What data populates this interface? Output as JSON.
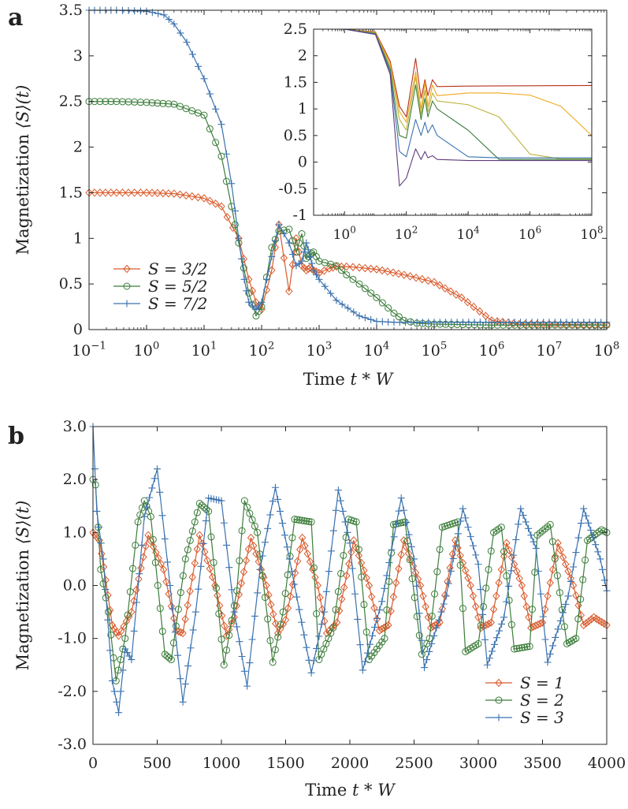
{
  "panels": {
    "a": {
      "letter": "a"
    },
    "b": {
      "letter": "b"
    }
  },
  "chart_data": [
    {
      "id": "a-main",
      "type": "line",
      "panel_label": "a",
      "xlabel": "Time t * W",
      "ylabel": "Magnetization ⟨S_z⟩(t)",
      "xscale": "log",
      "xlim": [
        0.1,
        100000000
      ],
      "ylim": [
        0,
        3.5
      ],
      "x_ticks": [
        {
          "v": 0.1,
          "b": "10",
          "e": "−1"
        },
        {
          "v": 1,
          "b": "10",
          "e": "0"
        },
        {
          "v": 10,
          "b": "10",
          "e": "1"
        },
        {
          "v": 100,
          "b": "10",
          "e": "2"
        },
        {
          "v": 1000,
          "b": "10",
          "e": "3"
        },
        {
          "v": 10000,
          "b": "10",
          "e": "4"
        },
        {
          "v": 100000,
          "b": "10",
          "e": "5"
        },
        {
          "v": 1000000,
          "b": "10",
          "e": "6"
        },
        {
          "v": 10000000,
          "b": "10",
          "e": "7"
        },
        {
          "v": 100000000,
          "b": "10",
          "e": "8"
        }
      ],
      "y_ticks": [
        {
          "v": 0,
          "t": "0"
        },
        {
          "v": 0.5,
          "t": "0.5"
        },
        {
          "v": 1,
          "t": "1"
        },
        {
          "v": 1.5,
          "t": "1.5"
        },
        {
          "v": 2,
          "t": "2"
        },
        {
          "v": 2.5,
          "t": "2.5"
        },
        {
          "v": 3,
          "t": "3"
        },
        {
          "v": 3.5,
          "t": "3.5"
        }
      ],
      "legend_position": "bottom-left",
      "series": [
        {
          "name": "S = 3/2",
          "color": "#d95a2b",
          "marker": "diamond",
          "x": [
            0.1,
            0.3,
            1,
            3,
            10,
            20,
            40,
            60,
            80,
            100,
            150,
            200,
            300,
            400,
            500,
            600,
            700,
            800,
            1000,
            1500,
            2000,
            3000,
            5000,
            10000,
            30000,
            100000,
            300000,
            1000000,
            3000000,
            10000000,
            100000000
          ],
          "y": [
            1.5,
            1.5,
            1.5,
            1.49,
            1.44,
            1.35,
            1.0,
            0.55,
            0.3,
            0.22,
            0.65,
            1.15,
            0.42,
            1.0,
            0.7,
            0.65,
            0.68,
            0.65,
            0.62,
            0.67,
            0.69,
            0.69,
            0.68,
            0.66,
            0.6,
            0.52,
            0.35,
            0.1,
            0.06,
            0.06,
            0.05
          ]
        },
        {
          "name": "S = 5/2",
          "color": "#3c7d3a",
          "marker": "circle",
          "x": [
            0.1,
            0.3,
            1,
            3,
            10,
            20,
            30,
            40,
            60,
            80,
            100,
            150,
            200,
            300,
            400,
            500,
            600,
            700,
            800,
            1000,
            2000,
            3000,
            5000,
            10000,
            20000,
            30000,
            50000,
            100000,
            1000000,
            10000000,
            100000000
          ],
          "y": [
            2.5,
            2.5,
            2.49,
            2.47,
            2.35,
            1.9,
            1.35,
            0.95,
            0.4,
            0.15,
            0.25,
            0.9,
            1.08,
            1.1,
            0.85,
            1.05,
            0.78,
            0.82,
            0.85,
            0.75,
            0.7,
            0.6,
            0.5,
            0.35,
            0.18,
            0.1,
            0.07,
            0.06,
            0.05,
            0.05,
            0.05
          ]
        },
        {
          "name": "S = 7/2",
          "color": "#3a72b0",
          "marker": "plus",
          "x": [
            0.1,
            0.3,
            1,
            2,
            3,
            5,
            10,
            20,
            30,
            40,
            50,
            60,
            80,
            100,
            150,
            200,
            300,
            400,
            500,
            600,
            700,
            800,
            1000,
            2000,
            5000,
            10000,
            20000,
            100000,
            100000000
          ],
          "y": [
            3.5,
            3.5,
            3.49,
            3.45,
            3.35,
            3.15,
            2.75,
            2.25,
            1.6,
            1.0,
            0.55,
            0.3,
            0.22,
            0.3,
            0.8,
            1.15,
            0.95,
            0.7,
            0.75,
            0.95,
            0.8,
            0.65,
            0.55,
            0.32,
            0.15,
            0.09,
            0.08,
            0.08,
            0.08
          ]
        }
      ]
    },
    {
      "id": "a-inset",
      "type": "line",
      "xscale": "log",
      "xlim": [
        0.1,
        100000000
      ],
      "ylim": [
        -1,
        2.5
      ],
      "x_ticks": [
        {
          "v": 1,
          "b": "10",
          "e": "0"
        },
        {
          "v": 100,
          "b": "10",
          "e": "2"
        },
        {
          "v": 10000,
          "b": "10",
          "e": "4"
        },
        {
          "v": 1000000,
          "b": "10",
          "e": "6"
        },
        {
          "v": 100000000,
          "b": "10",
          "e": "8"
        }
      ],
      "y_ticks": [
        {
          "v": -1,
          "t": "-1"
        },
        {
          "v": -0.5,
          "t": "-0.5"
        },
        {
          "v": 0,
          "t": "0"
        },
        {
          "v": 0.5,
          "t": "0.5"
        },
        {
          "v": 1,
          "t": "1"
        },
        {
          "v": 1.5,
          "t": "1.5"
        },
        {
          "v": 2,
          "t": "2"
        },
        {
          "v": 2.5,
          "t": "2.5"
        }
      ],
      "series": [
        {
          "color": "#b8321e",
          "x": [
            0.1,
            1,
            10,
            30,
            60,
            100,
            200,
            300,
            400,
            500,
            700,
            1000,
            10000,
            100000000
          ],
          "y": [
            2.5,
            2.5,
            2.45,
            1.9,
            1.05,
            0.85,
            1.95,
            1.2,
            1.55,
            1.25,
            1.55,
            1.42,
            1.43,
            1.44
          ]
        },
        {
          "color": "#f0a81c",
          "x": [
            0.1,
            1,
            10,
            30,
            60,
            100,
            200,
            300,
            400,
            500,
            700,
            1000,
            10000,
            100000,
            1000000,
            10000000,
            100000000
          ],
          "y": [
            2.5,
            2.5,
            2.44,
            1.85,
            0.95,
            0.75,
            1.7,
            1.0,
            1.5,
            1.05,
            1.45,
            1.25,
            1.3,
            1.3,
            1.26,
            1.05,
            0.5
          ]
        },
        {
          "color": "#bcb23c",
          "x": [
            0.1,
            1,
            10,
            30,
            60,
            100,
            200,
            300,
            400,
            500,
            700,
            1000,
            10000,
            100000,
            1000000,
            10000000,
            100000000
          ],
          "y": [
            2.5,
            2.5,
            2.43,
            1.8,
            0.8,
            0.6,
            1.6,
            0.9,
            1.35,
            0.95,
            1.3,
            1.15,
            1.08,
            0.85,
            0.15,
            0.06,
            0.06
          ]
        },
        {
          "color": "#3c7d3a",
          "x": [
            0.1,
            1,
            10,
            30,
            60,
            100,
            200,
            300,
            400,
            500,
            700,
            1000,
            10000,
            100000,
            1000000,
            100000000
          ],
          "y": [
            2.5,
            2.5,
            2.42,
            1.75,
            0.5,
            0.45,
            1.45,
            0.8,
            1.2,
            0.85,
            1.15,
            1.0,
            0.6,
            0.05,
            0.05,
            0.05
          ]
        },
        {
          "color": "#3a72b0",
          "x": [
            0.1,
            1,
            10,
            30,
            60,
            100,
            200,
            300,
            400,
            500,
            700,
            1000,
            10000,
            100000,
            100000000
          ],
          "y": [
            2.5,
            2.5,
            2.41,
            1.7,
            0.2,
            0.1,
            0.8,
            0.5,
            0.75,
            0.55,
            0.7,
            0.5,
            0.1,
            0.08,
            0.08
          ]
        },
        {
          "color": "#5f3c7c",
          "x": [
            0.1,
            1,
            10,
            30,
            60,
            100,
            200,
            300,
            400,
            500,
            700,
            1000,
            10000,
            100000000
          ],
          "y": [
            2.5,
            2.5,
            2.4,
            1.65,
            -0.45,
            -0.3,
            0.25,
            0.05,
            0.2,
            0.08,
            0.12,
            0.05,
            0.03,
            0.03
          ]
        }
      ]
    },
    {
      "id": "b-main",
      "type": "line",
      "panel_label": "b",
      "xlabel": "Time t * W",
      "ylabel": "Magnetization ⟨S_z⟩(t)",
      "xlim": [
        0,
        4000
      ],
      "ylim": [
        -3,
        3
      ],
      "x_ticks": [
        {
          "v": 0,
          "t": "0"
        },
        {
          "v": 500,
          "t": "500"
        },
        {
          "v": 1000,
          "t": "1000"
        },
        {
          "v": 1500,
          "t": "1500"
        },
        {
          "v": 2000,
          "t": "2000"
        },
        {
          "v": 2500,
          "t": "2500"
        },
        {
          "v": 3000,
          "t": "3000"
        },
        {
          "v": 3500,
          "t": "3500"
        },
        {
          "v": 4000,
          "t": "4000"
        }
      ],
      "y_ticks": [
        {
          "v": -3,
          "t": "-3.0"
        },
        {
          "v": -2,
          "t": "-2.0"
        },
        {
          "v": -1,
          "t": "-1.0"
        },
        {
          "v": 0,
          "t": "0.0"
        },
        {
          "v": 1,
          "t": "1.0"
        },
        {
          "v": 2,
          "t": "2.0"
        },
        {
          "v": 3,
          "t": "3.0"
        }
      ],
      "legend_position": "bottom-right",
      "series": [
        {
          "name": "S = 1",
          "color": "#d95a2b",
          "marker": "diamond",
          "x": [
            0,
            50,
            100,
            150,
            200,
            300,
            430,
            550,
            650,
            700,
            830,
            950,
            1040,
            1100,
            1230,
            1350,
            1440,
            1500,
            1630,
            1750,
            1820,
            1900,
            2030,
            2150,
            2230,
            2300,
            2420,
            2550,
            2630,
            2700,
            2820,
            2940,
            3020,
            3100,
            3220,
            3340,
            3410,
            3500,
            3620,
            3740,
            3820,
            3900,
            4000
          ],
          "y": [
            1.0,
            0.85,
            0.1,
            -0.75,
            -0.95,
            -0.5,
            0.95,
            0.3,
            -0.85,
            -0.9,
            0.95,
            0.0,
            -0.95,
            -0.6,
            0.9,
            0.0,
            -0.9,
            -0.65,
            0.9,
            0.0,
            -0.9,
            -0.7,
            0.85,
            0.0,
            -0.85,
            -0.75,
            0.85,
            0.0,
            -0.8,
            -0.7,
            0.85,
            0.0,
            -0.8,
            -0.7,
            0.8,
            0.0,
            -0.8,
            -0.7,
            0.8,
            0.0,
            -0.75,
            -0.6,
            -0.75
          ]
        },
        {
          "name": "S = 2",
          "color": "#3c7d3a",
          "marker": "circle",
          "x": [
            0,
            20,
            60,
            120,
            180,
            250,
            350,
            400,
            450,
            560,
            610,
            720,
            830,
            900,
            1020,
            1120,
            1180,
            1280,
            1400,
            1480,
            1570,
            1700,
            1760,
            1870,
            1990,
            2050,
            2150,
            2270,
            2340,
            2430,
            2560,
            2620,
            2720,
            2840,
            2900,
            3000,
            3120,
            3180,
            3280,
            3400,
            3460,
            3560,
            3690,
            3760,
            3850,
            3960,
            4000
          ],
          "y": [
            2.0,
            1.9,
            0.3,
            -0.5,
            -1.8,
            -1.0,
            1.2,
            1.6,
            1.3,
            -1.3,
            -1.4,
            0.5,
            1.55,
            1.4,
            -1.5,
            -0.1,
            1.6,
            1.0,
            -1.45,
            -0.5,
            1.25,
            1.2,
            -1.4,
            -0.8,
            1.25,
            1.2,
            -1.4,
            -1.0,
            1.15,
            1.2,
            -1.3,
            -1.0,
            1.1,
            1.2,
            -1.25,
            -1.1,
            1.0,
            1.1,
            -1.2,
            -1.15,
            0.95,
            1.15,
            -1.1,
            -1.0,
            0.85,
            1.05,
            1.0
          ]
        },
        {
          "name": "S = 3",
          "color": "#3a72b0",
          "marker": "plus",
          "x": [
            0,
            30,
            80,
            150,
            200,
            250,
            300,
            400,
            500,
            600,
            700,
            800,
            900,
            1000,
            1100,
            1200,
            1300,
            1420,
            1530,
            1700,
            1800,
            1910,
            2000,
            2100,
            2250,
            2400,
            2500,
            2580,
            2750,
            2880,
            3000,
            3070,
            3200,
            3330,
            3450,
            3540,
            3700,
            3820,
            3950,
            4000
          ],
          "y": [
            3.0,
            1.4,
            0.5,
            -1.8,
            -2.4,
            -1.2,
            -1.4,
            1.3,
            2.2,
            0.0,
            -2.2,
            -0.5,
            1.65,
            1.6,
            -0.5,
            -1.9,
            0.3,
            1.85,
            0.5,
            -1.65,
            -0.5,
            1.8,
            0.8,
            -1.6,
            -0.3,
            1.65,
            0.5,
            -1.55,
            -0.2,
            1.45,
            0.4,
            -1.5,
            -0.6,
            1.45,
            0.7,
            -1.45,
            -0.2,
            1.45,
            0.5,
            -0.1
          ]
        }
      ]
    }
  ]
}
